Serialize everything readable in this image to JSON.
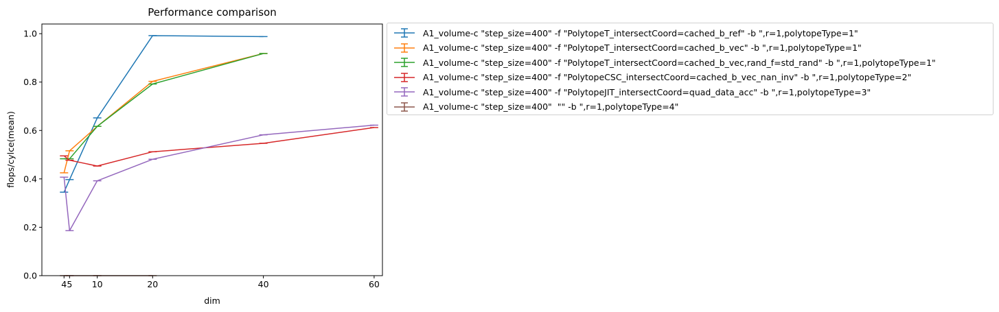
{
  "chart_data": {
    "type": "line",
    "title": "Performance comparison",
    "xlabel": "dim",
    "ylabel": "flops/cylce(mean)",
    "xlim": [
      -0.0,
      61.5
    ],
    "ylim": [
      0.0,
      1.04
    ],
    "xticks": [
      4,
      5,
      10,
      20,
      40,
      60
    ],
    "yticks": [
      0.0,
      0.2,
      0.4,
      0.6,
      0.8,
      1.0
    ],
    "ytick_labels": [
      "0.0",
      "0.2",
      "0.4",
      "0.6",
      "0.8",
      "1.0"
    ],
    "error_bars": true,
    "grid": false,
    "legend_position": "outside upper right",
    "series": [
      {
        "name": "A1_volume-c \"step_size=400\" -f \"PolytopeT_intersectCoord=cached_b_ref\" -b \",r=1,polytopeType=1\"",
        "color": "#1f77b4",
        "x": [
          4,
          5,
          10,
          20,
          40
        ],
        "y": [
          0.345,
          0.397,
          0.652,
          0.992,
          0.988
        ]
      },
      {
        "name": "A1_volume-c \"step_size=400\" -f \"PolytopeT_intersectCoord=cached_b_vec\" -b \",r=1,polytopeType=1\"",
        "color": "#ff7f0e",
        "x": [
          4,
          5,
          10,
          20,
          40
        ],
        "y": [
          0.425,
          0.516,
          0.617,
          0.803,
          0.918
        ]
      },
      {
        "name": "A1_volume-c \"step_size=400\" -f \"PolytopeT_intersectCoord=cached_b_vec,rand_f=std_rand\" -b \",r=1,polytopeType=1\"",
        "color": "#2ca02c",
        "x": [
          4,
          5,
          10,
          20,
          40
        ],
        "y": [
          0.483,
          0.483,
          0.617,
          0.792,
          0.918
        ]
      },
      {
        "name": "A1_volume-c \"step_size=400\" -f \"PolytopeCSC_intersectCoord=cached_b_vec_nan_inv\" -b \",r=1,polytopeType=2\"",
        "color": "#d62728",
        "x": [
          4,
          5,
          10,
          20,
          40,
          60
        ],
        "y": [
          0.495,
          0.477,
          0.453,
          0.512,
          0.547,
          0.612
        ]
      },
      {
        "name": "A1_volume-c \"step_size=400\" -f \"PolytopeJIT_intersectCoord=quad_data_acc\" -b \",r=1,polytopeType=3\"",
        "color": "#9467bd",
        "x": [
          4,
          5,
          10,
          20,
          40,
          60
        ],
        "y": [
          0.407,
          0.186,
          0.392,
          0.481,
          0.582,
          0.622
        ]
      },
      {
        "name": "A1_volume-c \"step_size=400\"  \"\" -b \",r=1,polytopeType=4\"",
        "color": "#8c564b",
        "x": [
          4,
          5,
          10,
          20
        ],
        "y": [
          0.0,
          0.0,
          0.0,
          0.0
        ]
      }
    ]
  }
}
